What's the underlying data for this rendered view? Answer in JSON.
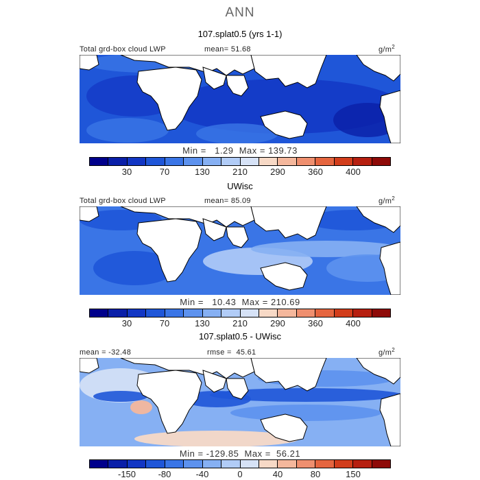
{
  "suptitle": "ANN",
  "units_label": "g/m",
  "units_sup": "2",
  "chart_data": [
    {
      "type": "heatmap",
      "title": "107.splat0.5 (yrs 1-1)",
      "field": "Total grd-box cloud LWP",
      "mean_label": "mean=",
      "mean": "51.68",
      "min_label": "Min =",
      "min": "1.29",
      "max_label": "Max =",
      "max": "139.73",
      "colorbar_ticks": [
        "30",
        "70",
        "130",
        "210",
        "290",
        "360",
        "400"
      ],
      "colorbar_colors": [
        "#00008b",
        "#0a1fa8",
        "#1236c4",
        "#1f56d8",
        "#3a75e6",
        "#5d92ee",
        "#86b0f3",
        "#b1ccf7",
        "#d6e2f6",
        "#f7d9c6",
        "#f4b79c",
        "#ef8f6f",
        "#e5653f",
        "#d23d1b",
        "#b61f10",
        "#8e0a08"
      ]
    },
    {
      "type": "heatmap",
      "title": "UWisc",
      "field": "Total grd-box cloud LWP",
      "mean_label": "mean=",
      "mean": "85.09",
      "min_label": "Min =",
      "min": "10.43",
      "max_label": "Max =",
      "max": "210.69",
      "colorbar_ticks": [
        "30",
        "70",
        "130",
        "210",
        "290",
        "360",
        "400"
      ],
      "colorbar_colors": [
        "#00008b",
        "#0a1fa8",
        "#1236c4",
        "#1f56d8",
        "#3a75e6",
        "#5d92ee",
        "#86b0f3",
        "#b1ccf7",
        "#d6e2f6",
        "#f7d9c6",
        "#f4b79c",
        "#ef8f6f",
        "#e5653f",
        "#d23d1b",
        "#b61f10",
        "#8e0a08"
      ]
    },
    {
      "type": "heatmap",
      "title": "107.splat0.5 - UWisc",
      "mean_label": "mean =",
      "mean": "-32.48",
      "rmse_label": "rmse =",
      "rmse": "45.61",
      "min_label": "Min =",
      "min": "-129.85",
      "max_label": "Max =",
      "max": "56.21",
      "colorbar_ticks": [
        "-150",
        "-80",
        "-40",
        "0",
        "40",
        "80",
        "150"
      ],
      "colorbar_colors": [
        "#00008b",
        "#0a1fa8",
        "#1236c4",
        "#1f56d8",
        "#3a75e6",
        "#5d92ee",
        "#86b0f3",
        "#b1ccf7",
        "#d6e2f6",
        "#f7d9c6",
        "#f4b79c",
        "#ef8f6f",
        "#e5653f",
        "#d23d1b",
        "#b61f10",
        "#8e0a08"
      ]
    }
  ]
}
